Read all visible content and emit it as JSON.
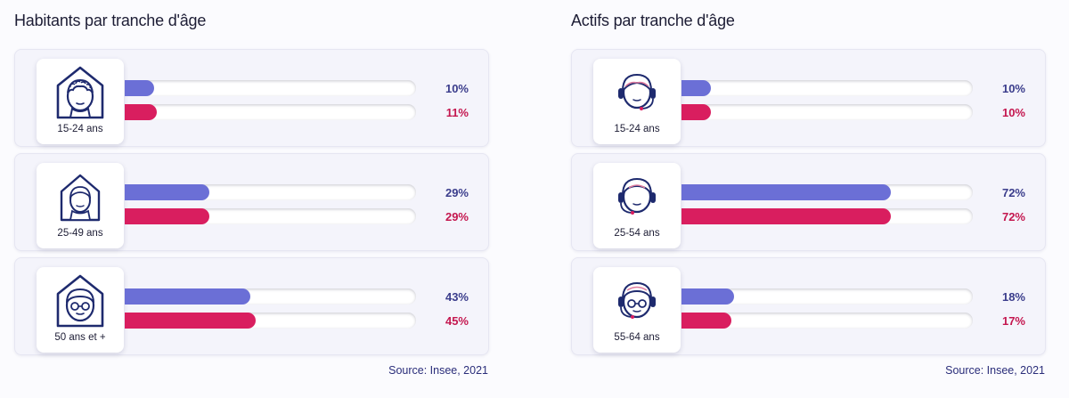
{
  "colors": {
    "series1": "#6b6fd6",
    "series2": "#d91e5f",
    "series1_text": "#3b3d8c",
    "series2_text": "#c4174f"
  },
  "chart_data": [
    {
      "type": "bar",
      "title": "Habitants par tranche d'âge",
      "categories": [
        "15-24 ans",
        "25-49 ans",
        "50 ans et +"
      ],
      "icons": [
        "house-youth-icon",
        "house-adult-icon",
        "house-senior-icon"
      ],
      "series": [
        {
          "values": [
            10,
            29,
            43
          ],
          "labels": [
            "10%",
            "29%",
            "43%"
          ]
        },
        {
          "values": [
            11,
            29,
            45
          ],
          "labels": [
            "11%",
            "29%",
            "45%"
          ]
        }
      ],
      "xlim": [
        0,
        100
      ],
      "source": "Source: Insee, 2021"
    },
    {
      "type": "bar",
      "title": "Actifs par tranche d'âge",
      "categories": [
        "15-24 ans",
        "25-54 ans",
        "55-64 ans"
      ],
      "icons": [
        "headset-youth-icon",
        "headset-adult-icon",
        "headset-senior-icon"
      ],
      "series": [
        {
          "values": [
            10,
            72,
            18
          ],
          "labels": [
            "10%",
            "72%",
            "18%"
          ]
        },
        {
          "values": [
            10,
            72,
            17
          ],
          "labels": [
            "10%",
            "72%",
            "17%"
          ]
        }
      ],
      "xlim": [
        0,
        100
      ],
      "source": "Source: Insee, 2021"
    }
  ]
}
